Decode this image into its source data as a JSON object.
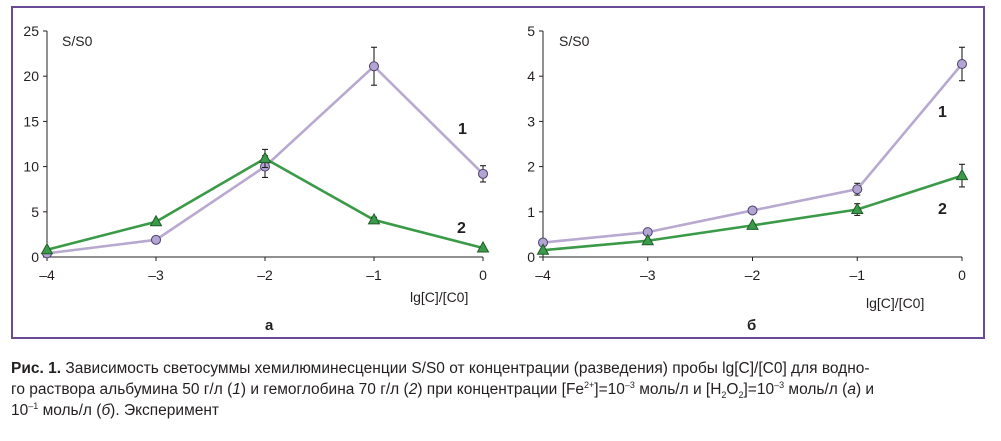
{
  "charts": [
    {
      "panel_label": "а",
      "ylabel": "S/S0",
      "xlabel": "lg[C]/[C0]",
      "x_ticks": [
        "–4",
        "–3",
        "–2",
        "–1",
        "0"
      ],
      "y_ticks": [
        "0",
        "5",
        "10",
        "15",
        "20",
        "25"
      ]
    },
    {
      "panel_label": "б",
      "ylabel": "S/S0",
      "xlabel": "lg[C]/[C0]",
      "x_ticks": [
        "–4",
        "–3",
        "–2",
        "–1",
        "0"
      ],
      "y_ticks": [
        "0",
        "1",
        "2",
        "3",
        "4",
        "5"
      ]
    }
  ],
  "chart_data": [
    {
      "type": "line",
      "x": [
        -4,
        -3,
        -2,
        -1,
        0
      ],
      "xlim": [
        -4,
        0
      ],
      "ylim": [
        0,
        25
      ],
      "series": [
        {
          "name": "1",
          "marker": "circle",
          "color": "#b8a9d0",
          "values": [
            0.4,
            1.9,
            10.0,
            21.1,
            9.2
          ],
          "error": [
            0,
            0,
            1.2,
            2.1,
            0.9
          ]
        },
        {
          "name": "2",
          "marker": "triangle",
          "color": "#3a9a47",
          "values": [
            0.8,
            3.9,
            10.9,
            4.1,
            1.0
          ],
          "error": [
            0,
            0,
            1.0,
            0.3,
            0
          ]
        }
      ],
      "series_label_positions": "right-side"
    },
    {
      "type": "line",
      "x": [
        -4,
        -3,
        -2,
        -1,
        0
      ],
      "xlim": [
        -4,
        0
      ],
      "ylim": [
        0,
        5
      ],
      "series": [
        {
          "name": "1",
          "marker": "circle",
          "color": "#b8a9d0",
          "values": [
            0.32,
            0.55,
            1.03,
            1.5,
            4.27
          ],
          "error": [
            0,
            0,
            0.06,
            0.13,
            0.37
          ]
        },
        {
          "name": "2",
          "marker": "triangle",
          "color": "#3a9a47",
          "values": [
            0.15,
            0.36,
            0.7,
            1.05,
            1.8
          ],
          "error": [
            0,
            0,
            0,
            0.13,
            0.25
          ]
        }
      ],
      "series_label_positions": "right-side"
    }
  ],
  "caption": {
    "fig_label": "Рис. 1.",
    "text_line1": "Зависимость светосуммы хемилюминесценции S/S0 от концентрации (разведения) пробы lg[C]/[C0] для водно-",
    "text_line2_a": "го раствора альбумина 50 г/л (",
    "italic_1": "1",
    "text_line2_b": ") и гемоглобина 70 г/л (",
    "italic_2": "2",
    "text_line2_c": ") при концентрации [Fe",
    "sup_fe": "2+",
    "text_line2_d": "]=10",
    "sup_exp1": "–3",
    "text_line2_e": " моль/л и [H",
    "sub_2a": "2",
    "text_line2_f": "O",
    "sub_2b": "2",
    "text_line2_g": "]=10",
    "sup_exp2": "–3",
    "text_line2_h": " моль/л (",
    "italic_a": "а",
    "text_line2_i": ") и",
    "text_line3_a": "10",
    "sup_exp3": "–1",
    "text_line3_b": " моль/л (",
    "italic_b": "б",
    "text_line3_c": "). Эксперимент"
  },
  "colors": {
    "frame": "#6a4a95",
    "series1": "#b8a9d0",
    "series1_marker": "#b3a5d3",
    "series2": "#3a9a47",
    "series2_marker": "#3d9a4a"
  }
}
